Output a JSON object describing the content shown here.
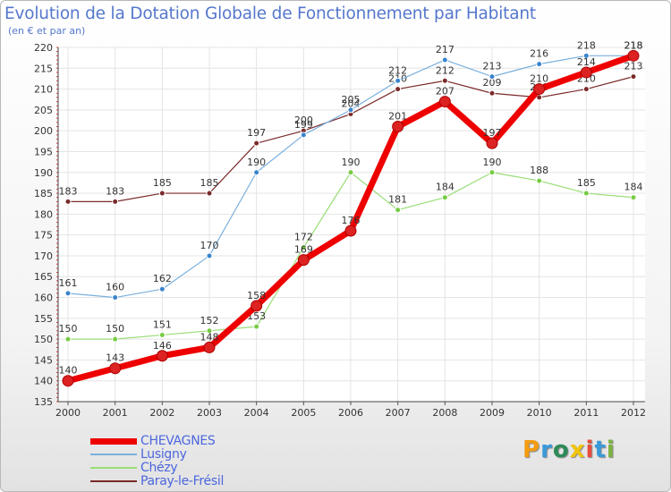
{
  "header": {
    "title": "Evolution de la Dotation Globale de Fonctionnement par Habitant",
    "subtitle": "(en € et par an)"
  },
  "brand": {
    "letters": [
      "P",
      "r",
      "o",
      "x",
      "i",
      "t",
      "i"
    ],
    "colors": [
      "#f39c12",
      "#3a9ad9",
      "#2e8b57",
      "#f1c40f",
      "#e74c3c",
      "#3a9ad9",
      "#7cb342"
    ]
  },
  "chart_data": {
    "type": "line",
    "title": "Evolution de la Dotation Globale de Fonctionnement par Habitant",
    "subtitle": "(en € et par an)",
    "x": [
      "2000",
      "2001",
      "2002",
      "2003",
      "2004",
      "2005",
      "2006",
      "2007",
      "2008",
      "2009",
      "2010",
      "2011",
      "2012"
    ],
    "ylim": [
      135,
      220
    ],
    "yticks": [
      135,
      140,
      145,
      150,
      155,
      160,
      165,
      170,
      175,
      180,
      185,
      190,
      195,
      200,
      205,
      210,
      215,
      220
    ],
    "grid": true,
    "legend_position": "bottom-left",
    "series": [
      {
        "name": "Paray-le-Frésil",
        "color": "#7a2a2a",
        "marker_color": "#7a2a2a",
        "line_width": 1.2,
        "marker_radius": 3,
        "values": [
          183,
          183,
          185,
          185,
          197,
          200,
          204,
          210,
          212,
          209,
          208,
          210,
          213
        ],
        "labels": [
          "183",
          "183",
          "185",
          "185",
          "197",
          "200",
          "204",
          "210",
          "212",
          "209",
          "208",
          "210",
          "213"
        ]
      },
      {
        "name": "Chézy",
        "color": "#99dd77",
        "marker_color": "#77cc44",
        "line_width": 1.2,
        "marker_radius": 3,
        "values": [
          150,
          150,
          151,
          152,
          153,
          172,
          190,
          181,
          184,
          190,
          188,
          185,
          184
        ],
        "labels": [
          "150",
          "150",
          "151",
          "152",
          "153",
          "172",
          "190",
          "181",
          "184",
          "190",
          "188",
          "185",
          "184"
        ]
      },
      {
        "name": "Lusigny",
        "color": "#7ab0dd",
        "marker_color": "#3a84cc",
        "line_width": 1.2,
        "marker_radius": 3,
        "values": [
          161,
          160,
          162,
          170,
          190,
          199,
          205,
          212,
          217,
          213,
          216,
          218,
          218
        ],
        "labels": [
          "161",
          "160",
          "162",
          "170",
          "190",
          "199",
          "205",
          "212",
          "217",
          "213",
          "216",
          "218",
          "218"
        ]
      },
      {
        "name": "CHEVAGNES",
        "color": "#ee0000",
        "marker_color": "#dd2222",
        "line_width": 7,
        "marker_radius": 6,
        "values": [
          140,
          143,
          146,
          148,
          158,
          169,
          176,
          201,
          207,
          197,
          210,
          214,
          218
        ],
        "labels": [
          "140",
          "143",
          "146",
          "148",
          "158",
          "169",
          "176",
          "201",
          "207",
          "197",
          "210",
          "214",
          "218"
        ]
      }
    ],
    "legend_order": [
      "CHEVAGNES",
      "Lusigny",
      "Chézy",
      "Paray-le-Frésil"
    ]
  }
}
